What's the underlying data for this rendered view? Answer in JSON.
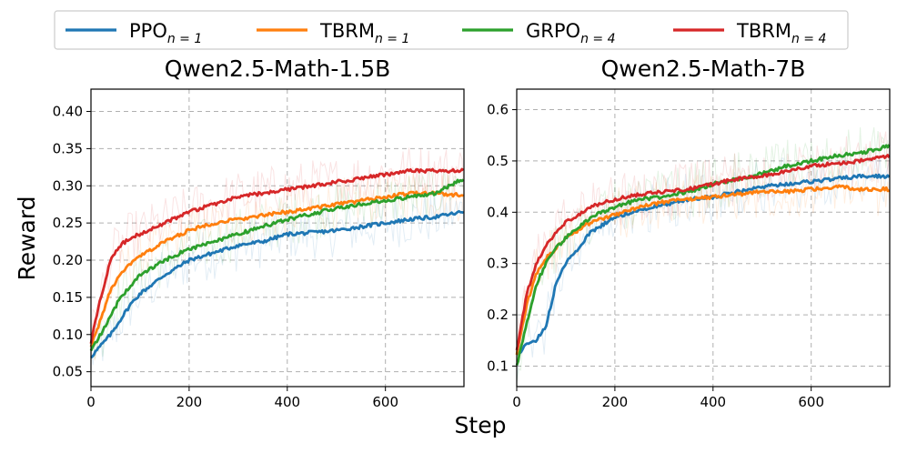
{
  "legend": [
    {
      "base": "PPO",
      "sub": "n = 1",
      "color": "#1f77b4"
    },
    {
      "base": "TBRM",
      "sub": "n = 1",
      "color": "#ff7f0e"
    },
    {
      "base": "GRPO",
      "sub": "n = 4",
      "color": "#2ca02c"
    },
    {
      "base": "TBRM",
      "sub": "n = 4",
      "color": "#d62728"
    }
  ],
  "xlabel": "Step",
  "ylabel": "Reward",
  "chart_data": [
    {
      "type": "line",
      "title": "Qwen2.5-Math-1.5B",
      "xlim": [
        0,
        760
      ],
      "ylim": [
        0.03,
        0.43
      ],
      "xticks": [
        0,
        200,
        400,
        600
      ],
      "yticks": [
        0.05,
        0.1,
        0.15,
        0.2,
        0.25,
        0.3,
        0.35,
        0.4
      ],
      "ytick_labels": [
        "0.05",
        "0.10",
        "0.15",
        "0.20",
        "0.25",
        "0.30",
        "0.35",
        "0.40"
      ],
      "x": [
        0,
        20,
        40,
        60,
        80,
        100,
        150,
        200,
        250,
        300,
        350,
        400,
        450,
        500,
        550,
        600,
        650,
        700,
        760
      ],
      "series": [
        {
          "name": "PPO n=1",
          "color": "#1f77b4",
          "values": [
            0.07,
            0.085,
            0.1,
            0.12,
            0.14,
            0.155,
            0.18,
            0.2,
            0.21,
            0.22,
            0.225,
            0.235,
            0.237,
            0.24,
            0.245,
            0.25,
            0.255,
            0.258,
            0.265
          ]
        },
        {
          "name": "TBRM n=1",
          "color": "#ff7f0e",
          "values": [
            0.085,
            0.12,
            0.16,
            0.18,
            0.195,
            0.205,
            0.225,
            0.24,
            0.25,
            0.255,
            0.26,
            0.265,
            0.27,
            0.275,
            0.28,
            0.285,
            0.29,
            0.29,
            0.287
          ]
        },
        {
          "name": "GRPO n=4",
          "color": "#2ca02c",
          "values": [
            0.08,
            0.1,
            0.125,
            0.15,
            0.165,
            0.18,
            0.2,
            0.215,
            0.225,
            0.235,
            0.245,
            0.255,
            0.262,
            0.27,
            0.275,
            0.28,
            0.285,
            0.29,
            0.31
          ]
        },
        {
          "name": "TBRM n=4",
          "color": "#d62728",
          "values": [
            0.09,
            0.15,
            0.2,
            0.22,
            0.23,
            0.235,
            0.25,
            0.265,
            0.275,
            0.285,
            0.29,
            0.295,
            0.3,
            0.305,
            0.31,
            0.315,
            0.32,
            0.32,
            0.32
          ]
        }
      ]
    },
    {
      "type": "line",
      "title": "Qwen2.5-Math-7B",
      "xlim": [
        0,
        760
      ],
      "ylim": [
        0.06,
        0.64
      ],
      "xticks": [
        0,
        200,
        400,
        600
      ],
      "yticks": [
        0.1,
        0.2,
        0.3,
        0.4,
        0.5,
        0.6
      ],
      "ytick_labels": [
        "0.1",
        "0.2",
        "0.3",
        "0.4",
        "0.5",
        "0.6"
      ],
      "x": [
        0,
        20,
        40,
        60,
        80,
        100,
        150,
        200,
        250,
        300,
        350,
        400,
        450,
        500,
        550,
        600,
        650,
        700,
        760
      ],
      "series": [
        {
          "name": "PPO n=1",
          "color": "#1f77b4",
          "values": [
            0.12,
            0.145,
            0.15,
            0.18,
            0.26,
            0.3,
            0.36,
            0.39,
            0.405,
            0.415,
            0.425,
            0.43,
            0.44,
            0.45,
            0.455,
            0.46,
            0.465,
            0.47,
            0.47
          ]
        },
        {
          "name": "TBRM n=1",
          "color": "#ff7f0e",
          "values": [
            0.12,
            0.22,
            0.28,
            0.31,
            0.33,
            0.35,
            0.38,
            0.395,
            0.41,
            0.42,
            0.425,
            0.43,
            0.435,
            0.44,
            0.44,
            0.445,
            0.45,
            0.445,
            0.445
          ]
        },
        {
          "name": "GRPO n=4",
          "color": "#2ca02c",
          "values": [
            0.1,
            0.18,
            0.26,
            0.3,
            0.33,
            0.35,
            0.39,
            0.41,
            0.425,
            0.43,
            0.44,
            0.455,
            0.465,
            0.475,
            0.49,
            0.5,
            0.51,
            0.515,
            0.53
          ]
        },
        {
          "name": "TBRM n=4",
          "color": "#d62728",
          "values": [
            0.13,
            0.24,
            0.3,
            0.335,
            0.36,
            0.38,
            0.41,
            0.425,
            0.435,
            0.44,
            0.445,
            0.455,
            0.465,
            0.47,
            0.48,
            0.49,
            0.495,
            0.5,
            0.51
          ]
        }
      ]
    }
  ]
}
